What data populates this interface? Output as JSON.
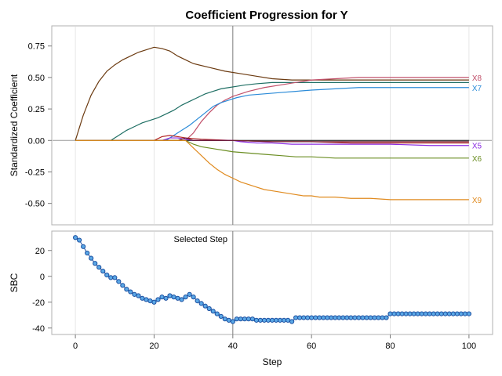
{
  "chart_data": [
    {
      "type": "line",
      "title": "Coefficient Progression for Y",
      "xlabel": "Step",
      "ylabel": "Standardized Coefficient",
      "xlim": [
        -6,
        106
      ],
      "ylim": [
        -0.67,
        0.91
      ],
      "x_ticks": [
        0,
        20,
        40,
        60,
        80,
        100
      ],
      "y_ticks": [
        0.75,
        0.5,
        0.25,
        0.0,
        -0.25,
        -0.5
      ],
      "y_tick_labels": [
        "0.75",
        "0.50",
        "0.25",
        "0.00",
        "-0.25",
        "-0.50"
      ],
      "x_grid": [
        0,
        20,
        40,
        60,
        80,
        100
      ],
      "reference_line_x": 40,
      "baseline_y": 0,
      "series": [
        {
          "name": "",
          "color": "#6b3a10",
          "points": [
            [
              0,
              0
            ],
            [
              2,
              0.2
            ],
            [
              4,
              0.36
            ],
            [
              6,
              0.47
            ],
            [
              8,
              0.55
            ],
            [
              10,
              0.6
            ],
            [
              12,
              0.64
            ],
            [
              14,
              0.67
            ],
            [
              16,
              0.7
            ],
            [
              18,
              0.72
            ],
            [
              20,
              0.74
            ],
            [
              22,
              0.73
            ],
            [
              24,
              0.71
            ],
            [
              26,
              0.67
            ],
            [
              28,
              0.64
            ],
            [
              30,
              0.61
            ],
            [
              34,
              0.58
            ],
            [
              38,
              0.55
            ],
            [
              42,
              0.53
            ],
            [
              46,
              0.51
            ],
            [
              50,
              0.49
            ],
            [
              55,
              0.48
            ],
            [
              60,
              0.48
            ],
            [
              70,
              0.48
            ],
            [
              80,
              0.48
            ],
            [
              90,
              0.48
            ],
            [
              100,
              0.48
            ]
          ]
        },
        {
          "name": "",
          "color": "#1f6f64",
          "points": [
            [
              0,
              0
            ],
            [
              9,
              0
            ],
            [
              11,
              0.04
            ],
            [
              13,
              0.08
            ],
            [
              15,
              0.11
            ],
            [
              17,
              0.14
            ],
            [
              19,
              0.16
            ],
            [
              21,
              0.18
            ],
            [
              23,
              0.21
            ],
            [
              25,
              0.24
            ],
            [
              27,
              0.28
            ],
            [
              29,
              0.31
            ],
            [
              31,
              0.34
            ],
            [
              33,
              0.37
            ],
            [
              35,
              0.39
            ],
            [
              37,
              0.41
            ],
            [
              39,
              0.42
            ],
            [
              41,
              0.43
            ],
            [
              43,
              0.44
            ],
            [
              46,
              0.45
            ],
            [
              50,
              0.46
            ],
            [
              55,
              0.46
            ],
            [
              60,
              0.46
            ],
            [
              70,
              0.46
            ],
            [
              80,
              0.46
            ],
            [
              90,
              0.46
            ],
            [
              100,
              0.46
            ]
          ]
        },
        {
          "name": "X8",
          "color": "#c1506a",
          "points": [
            [
              0,
              0
            ],
            [
              28,
              0
            ],
            [
              30,
              0.06
            ],
            [
              32,
              0.15
            ],
            [
              34,
              0.22
            ],
            [
              36,
              0.28
            ],
            [
              38,
              0.32
            ],
            [
              40,
              0.35
            ],
            [
              44,
              0.39
            ],
            [
              48,
              0.42
            ],
            [
              52,
              0.44
            ],
            [
              56,
              0.46
            ],
            [
              60,
              0.48
            ],
            [
              66,
              0.49
            ],
            [
              72,
              0.5
            ],
            [
              80,
              0.5
            ],
            [
              90,
              0.5
            ],
            [
              100,
              0.5
            ]
          ]
        },
        {
          "name": "X7",
          "color": "#2b8bd8",
          "points": [
            [
              0,
              0
            ],
            [
              23,
              0
            ],
            [
              25,
              0.04
            ],
            [
              27,
              0.08
            ],
            [
              29,
              0.12
            ],
            [
              31,
              0.17
            ],
            [
              33,
              0.22
            ],
            [
              35,
              0.27
            ],
            [
              37,
              0.3
            ],
            [
              39,
              0.32
            ],
            [
              41,
              0.34
            ],
            [
              44,
              0.36
            ],
            [
              48,
              0.37
            ],
            [
              52,
              0.38
            ],
            [
              56,
              0.39
            ],
            [
              60,
              0.4
            ],
            [
              66,
              0.41
            ],
            [
              72,
              0.42
            ],
            [
              80,
              0.42
            ],
            [
              90,
              0.42
            ],
            [
              100,
              0.42
            ]
          ]
        },
        {
          "name": "",
          "color": "#2a2a2a",
          "points": [
            [
              0,
              0
            ],
            [
              100,
              0
            ]
          ]
        },
        {
          "name": "",
          "color": "#b22222",
          "points": [
            [
              0,
              0
            ],
            [
              20,
              0
            ],
            [
              22,
              0.03
            ],
            [
              24,
              0.04
            ],
            [
              26,
              0.03
            ],
            [
              28,
              0.02
            ],
            [
              32,
              0.01
            ],
            [
              40,
              0
            ],
            [
              50,
              -0.01
            ],
            [
              60,
              -0.01
            ],
            [
              70,
              -0.02
            ],
            [
              80,
              -0.02
            ],
            [
              90,
              -0.02
            ],
            [
              100,
              -0.02
            ]
          ]
        },
        {
          "name": "X5",
          "color": "#8a2be2",
          "points": [
            [
              0,
              0
            ],
            [
              22,
              0
            ],
            [
              24,
              0.02
            ],
            [
              26,
              0.02
            ],
            [
              28,
              0.01
            ],
            [
              30,
              0
            ],
            [
              35,
              0
            ],
            [
              40,
              0
            ],
            [
              42,
              -0.01
            ],
            [
              46,
              -0.02
            ],
            [
              50,
              -0.02
            ],
            [
              55,
              -0.03
            ],
            [
              60,
              -0.03
            ],
            [
              80,
              -0.03
            ],
            [
              90,
              -0.04
            ],
            [
              100,
              -0.04
            ]
          ]
        },
        {
          "name": "",
          "color": "#6b1d2e",
          "points": [
            [
              0,
              0
            ],
            [
              26,
              0
            ],
            [
              28,
              0.02
            ],
            [
              30,
              0
            ],
            [
              40,
              0
            ],
            [
              50,
              -0.01
            ],
            [
              60,
              -0.01
            ],
            [
              80,
              -0.01
            ],
            [
              100,
              -0.01
            ]
          ]
        },
        {
          "name": "X6",
          "color": "#6b8e23",
          "points": [
            [
              0,
              0
            ],
            [
              28,
              0
            ],
            [
              30,
              -0.03
            ],
            [
              32,
              -0.05
            ],
            [
              34,
              -0.06
            ],
            [
              36,
              -0.07
            ],
            [
              38,
              -0.08
            ],
            [
              40,
              -0.09
            ],
            [
              44,
              -0.1
            ],
            [
              48,
              -0.11
            ],
            [
              52,
              -0.12
            ],
            [
              56,
              -0.13
            ],
            [
              60,
              -0.13
            ],
            [
              66,
              -0.14
            ],
            [
              72,
              -0.14
            ],
            [
              80,
              -0.14
            ],
            [
              90,
              -0.14
            ],
            [
              100,
              -0.14
            ]
          ]
        },
        {
          "name": "X9",
          "color": "#e08a1e",
          "points": [
            [
              0,
              0
            ],
            [
              28,
              0
            ],
            [
              30,
              -0.06
            ],
            [
              32,
              -0.12
            ],
            [
              34,
              -0.18
            ],
            [
              36,
              -0.23
            ],
            [
              38,
              -0.27
            ],
            [
              40,
              -0.3
            ],
            [
              42,
              -0.33
            ],
            [
              44,
              -0.35
            ],
            [
              46,
              -0.37
            ],
            [
              48,
              -0.39
            ],
            [
              50,
              -0.4
            ],
            [
              52,
              -0.41
            ],
            [
              54,
              -0.42
            ],
            [
              56,
              -0.43
            ],
            [
              58,
              -0.44
            ],
            [
              60,
              -0.44
            ],
            [
              62,
              -0.45
            ],
            [
              66,
              -0.45
            ],
            [
              70,
              -0.46
            ],
            [
              75,
              -0.46
            ],
            [
              80,
              -0.47
            ],
            [
              90,
              -0.47
            ],
            [
              100,
              -0.47
            ]
          ]
        }
      ]
    },
    {
      "type": "scatter",
      "title": "",
      "xlabel": "Step",
      "ylabel": "SBC",
      "xlim": [
        -6,
        106
      ],
      "ylim": [
        -45,
        35
      ],
      "x_ticks": [
        0,
        20,
        40,
        60,
        80,
        100
      ],
      "x_tick_labels": [
        "0",
        "20",
        "40",
        "60",
        "80",
        "100"
      ],
      "y_ticks": [
        20,
        0,
        -20,
        -40
      ],
      "y_tick_labels": [
        "20",
        "0",
        "-20",
        "-40"
      ],
      "x_grid": [
        0,
        20,
        40,
        60,
        80,
        100
      ],
      "reference_line_x": 40,
      "annotation": "Selected Step",
      "series": [
        {
          "name": "",
          "color": "#1b4fa0",
          "fill": "#5ba8e6",
          "x": [
            0,
            1,
            2,
            3,
            4,
            5,
            6,
            7,
            8,
            9,
            10,
            11,
            12,
            13,
            14,
            15,
            16,
            17,
            18,
            19,
            20,
            21,
            22,
            23,
            24,
            25,
            26,
            27,
            28,
            29,
            30,
            31,
            32,
            33,
            34,
            35,
            36,
            37,
            38,
            39,
            40,
            41,
            42,
            43,
            44,
            45,
            46,
            47,
            48,
            49,
            50,
            51,
            52,
            53,
            54,
            55,
            56,
            57,
            58,
            59,
            60,
            61,
            62,
            63,
            64,
            65,
            66,
            67,
            68,
            69,
            70,
            71,
            72,
            73,
            74,
            75,
            76,
            77,
            78,
            79,
            80,
            81,
            82,
            83,
            84,
            85,
            86,
            87,
            88,
            89,
            90,
            91,
            92,
            93,
            94,
            95,
            96,
            97,
            98,
            99,
            100
          ],
          "y": [
            30,
            28,
            23,
            18,
            14,
            10,
            7,
            4,
            1,
            -1,
            -1,
            -4,
            -7,
            -10,
            -12,
            -14,
            -15,
            -17,
            -18,
            -19,
            -20,
            -18,
            -16,
            -17,
            -15,
            -16,
            -17,
            -18,
            -16,
            -14,
            -16,
            -19,
            -21,
            -23,
            -25,
            -27,
            -29,
            -31,
            -33,
            -34,
            -35,
            -33,
            -33,
            -33,
            -33,
            -33,
            -34,
            -34,
            -34,
            -34,
            -34,
            -34,
            -34,
            -34,
            -34,
            -35,
            -32,
            -32,
            -32,
            -32,
            -32,
            -32,
            -32,
            -32,
            -32,
            -32,
            -32,
            -32,
            -32,
            -32,
            -32,
            -32,
            -32,
            -32,
            -32,
            -32,
            -32,
            -32,
            -32,
            -32,
            -29,
            -29,
            -29,
            -29,
            -29,
            -29,
            -29,
            -29,
            -29,
            -29,
            -29,
            -29,
            -29,
            -29,
            -29,
            -29,
            -29,
            -29,
            -29,
            -29,
            -29
          ]
        }
      ]
    }
  ]
}
